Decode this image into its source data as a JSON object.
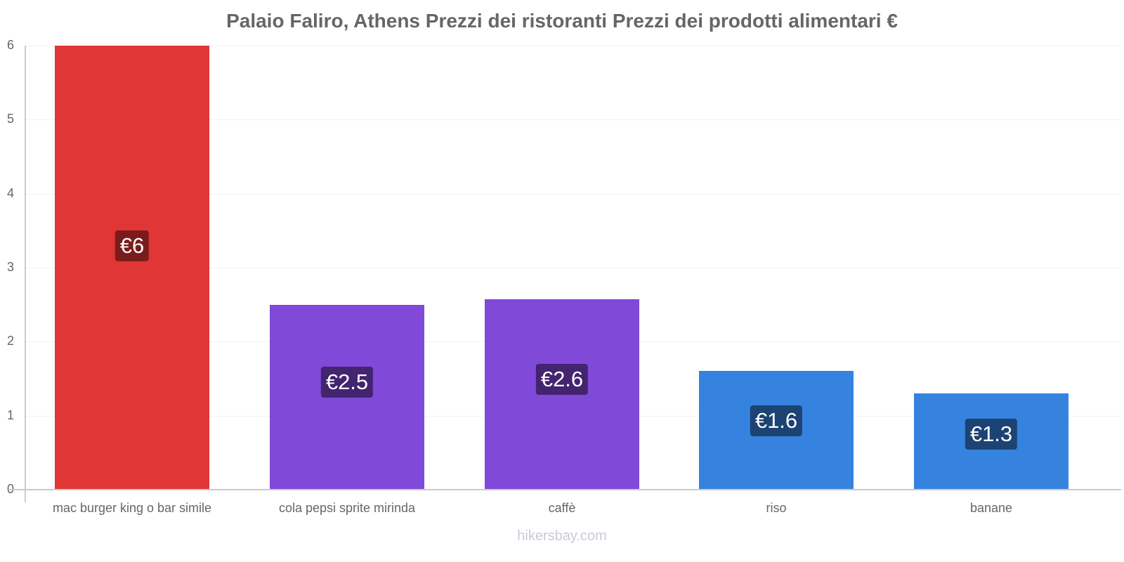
{
  "chart_data": {
    "type": "bar",
    "title": "Palaio Faliro, Athens Prezzi dei ristoranti Prezzi dei prodotti alimentari €",
    "xlabel": "",
    "ylabel": "",
    "ylim": [
      0,
      6
    ],
    "yticks": [
      "0",
      "1",
      "2",
      "3",
      "4",
      "5",
      "6"
    ],
    "grid": true,
    "legend": "none",
    "categories": [
      "mac burger king o bar simile",
      "cola pepsi sprite mirinda",
      "caffè",
      "riso",
      "banane"
    ],
    "values": [
      6,
      2.5,
      2.57,
      1.6,
      1.3
    ],
    "value_labels": [
      "€6",
      "€2.5",
      "€2.6",
      "€1.6",
      "€1.3"
    ],
    "bar_colors": [
      "#e03636",
      "#8049d8",
      "#8049d8",
      "#3583de",
      "#3583de"
    ],
    "label_bg_colors": [
      "#7a1c1c",
      "#43246f",
      "#43246f",
      "#1c4373",
      "#1c4373"
    ]
  },
  "watermark": "hikersbay.com"
}
